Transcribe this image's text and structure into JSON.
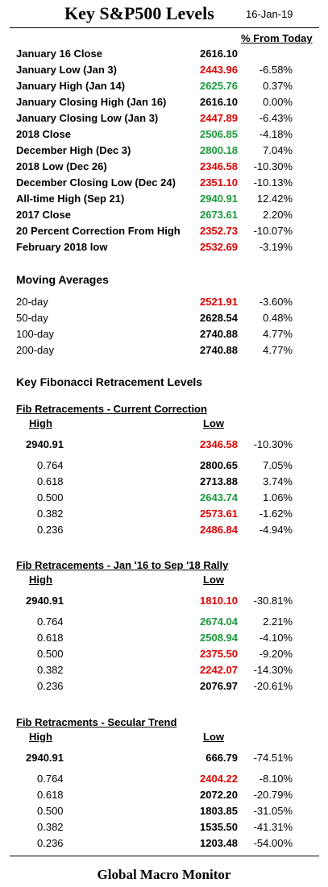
{
  "header": {
    "title": "Key S&P500 Levels",
    "date": "16-Jan-19",
    "pct_header": "% From Today"
  },
  "colors": {
    "green": "#1a9a3a",
    "red": "#e00000",
    "black": "#000000"
  },
  "key_levels": [
    {
      "label": "January 16 Close",
      "value": "2616.10",
      "pct": "",
      "color": "black"
    },
    {
      "label": "January Low (Jan 3)",
      "value": "2443.96",
      "pct": "-6.58%",
      "color": "red"
    },
    {
      "label": "January High (Jan 14)",
      "value": "2625.76",
      "pct": "0.37%",
      "color": "green"
    },
    {
      "label": "January Closing High (Jan 16)",
      "value": "2616.10",
      "pct": "0.00%",
      "color": "black"
    },
    {
      "label": "January Closing Low (Jan 3)",
      "value": "2447.89",
      "pct": "-6.43%",
      "color": "red"
    },
    {
      "label": "2018 Close",
      "value": "2506.85",
      "pct": "-4.18%",
      "color": "green"
    },
    {
      "label": "December High (Dec 3)",
      "value": "2800.18",
      "pct": "7.04%",
      "color": "green"
    },
    {
      "label": "2018 Low (Dec 26)",
      "value": "2346.58",
      "pct": "-10.30%",
      "color": "red"
    },
    {
      "label": "December Closing Low (Dec 24)",
      "value": "2351.10",
      "pct": "-10.13%",
      "color": "red"
    },
    {
      "label": "All-time High (Sep 21)",
      "value": "2940.91",
      "pct": "12.42%",
      "color": "green"
    },
    {
      "label": "2017 Close",
      "value": "2673.61",
      "pct": "2.20%",
      "color": "green"
    },
    {
      "label": "20 Percent Correction From High",
      "value": "2352.73",
      "pct": "-10.07%",
      "color": "red"
    },
    {
      "label": "February 2018 low",
      "value": "2532.69",
      "pct": "-3.19%",
      "color": "red"
    }
  ],
  "moving_averages": {
    "title": "Moving Averages",
    "rows": [
      {
        "label": "20-day",
        "value": "2521.91",
        "pct": "-3.60%",
        "color": "red"
      },
      {
        "label": "50-day",
        "value": "2628.54",
        "pct": "0.48%",
        "color": "black"
      },
      {
        "label": "100-day",
        "value": "2740.88",
        "pct": "4.77%",
        "color": "black"
      },
      {
        "label": "200-day",
        "value": "2740.88",
        "pct": "4.77%",
        "color": "black"
      }
    ]
  },
  "fib_title": "Key Fibonacci Retracement Levels",
  "fib_sections": [
    {
      "title": "Fib Retracements - Current Correction",
      "high_label": "High",
      "low_label": "Low",
      "high": "2940.91",
      "low": "2346.58",
      "low_pct": "-10.30%",
      "low_color": "red",
      "rows": [
        {
          "ratio": "0.764",
          "value": "2800.65",
          "pct": "7.05%",
          "color": "black"
        },
        {
          "ratio": "0.618",
          "value": "2713.88",
          "pct": "3.74%",
          "color": "black"
        },
        {
          "ratio": "0.500",
          "value": "2643.74",
          "pct": "1.06%",
          "color": "green"
        },
        {
          "ratio": "0.382",
          "value": "2573.61",
          "pct": "-1.62%",
          "color": "red"
        },
        {
          "ratio": "0.236",
          "value": "2486.84",
          "pct": "-4.94%",
          "color": "red"
        }
      ]
    },
    {
      "title": "Fib Retracements - Jan '16 to Sep '18 Rally",
      "high_label": "High",
      "low_label": "Low",
      "high": "2940.91",
      "low": "1810.10",
      "low_pct": "-30.81%",
      "low_color": "red",
      "rows": [
        {
          "ratio": "0.764",
          "value": "2674.04",
          "pct": "2.21%",
          "color": "green"
        },
        {
          "ratio": "0.618",
          "value": "2508.94",
          "pct": "-4.10%",
          "color": "green"
        },
        {
          "ratio": "0.500",
          "value": "2375.50",
          "pct": "-9.20%",
          "color": "red"
        },
        {
          "ratio": "0.382",
          "value": "2242.07",
          "pct": "-14.30%",
          "color": "red"
        },
        {
          "ratio": "0.236",
          "value": "2076.97",
          "pct": "-20.61%",
          "color": "black"
        }
      ]
    },
    {
      "title": "Fib Retracments - Secular Trend",
      "high_label": "High",
      "low_label": "Low",
      "high": "2940.91",
      "low": "666.79",
      "low_pct": "-74.51%",
      "low_color": "black",
      "rows": [
        {
          "ratio": "0.764",
          "value": "2404.22",
          "pct": "-8.10%",
          "color": "red"
        },
        {
          "ratio": "0.618",
          "value": "2072.20",
          "pct": "-20.79%",
          "color": "black"
        },
        {
          "ratio": "0.500",
          "value": "1803.85",
          "pct": "-31.05%",
          "color": "black"
        },
        {
          "ratio": "0.382",
          "value": "1535.50",
          "pct": "-41.31%",
          "color": "black"
        },
        {
          "ratio": "0.236",
          "value": "1203.48",
          "pct": "-54.00%",
          "color": "black"
        }
      ]
    }
  ],
  "footer": "Global Macro Monitor"
}
